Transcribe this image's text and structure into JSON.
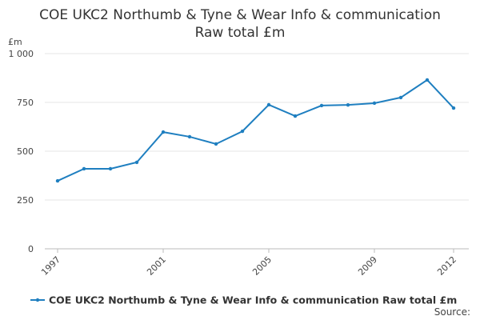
{
  "chart_data": {
    "type": "line",
    "title": [
      "COE UKC2 Northumb & Tyne & Wear Info & communication",
      "Raw total £m"
    ],
    "y_label": "£m",
    "x": [
      1997,
      1998,
      1999,
      2000,
      2001,
      2002,
      2003,
      2004,
      2005,
      2006,
      2007,
      2008,
      2009,
      2010,
      2011,
      2012
    ],
    "series": [
      {
        "name": "COE UKC2 Northumb & Tyne & Wear Info & communication Raw total £m",
        "color": "#1f7fc0",
        "values": [
          348,
          410,
          410,
          443,
          598,
          574,
          537,
          602,
          738,
          680,
          734,
          737,
          746,
          775,
          865,
          721
        ]
      }
    ],
    "xlim": [
      1997,
      2012
    ],
    "xticks": [
      1997,
      2001,
      2005,
      2009,
      2012
    ],
    "ylim": [
      0,
      1000
    ],
    "yticks": [
      0,
      250,
      500,
      750,
      {
        "value": 1000,
        "label": "1 000"
      }
    ],
    "grid": true,
    "legend": "bottom",
    "source": "Source:"
  }
}
